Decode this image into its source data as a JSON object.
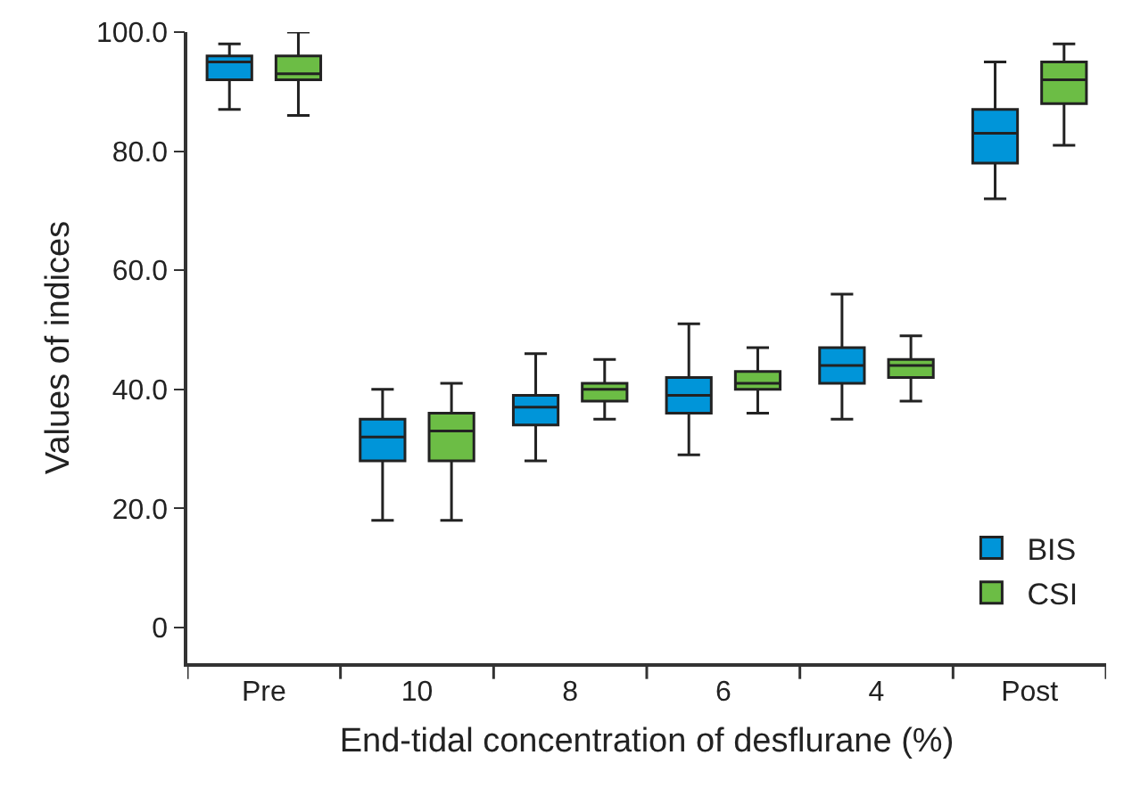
{
  "chart_data": {
    "type": "box",
    "xlabel": "End-tidal concentration of desflurane (%)",
    "ylabel": "Values of indices",
    "categories": [
      "Pre",
      "10",
      "8",
      "6",
      "4",
      "Post"
    ],
    "ylim": [
      -6,
      100
    ],
    "yticks": [
      {
        "value": 0,
        "label": "0"
      },
      {
        "value": 20,
        "label": "20.0"
      },
      {
        "value": 40,
        "label": "40.0"
      },
      {
        "value": 60,
        "label": "60.0"
      },
      {
        "value": 80,
        "label": "80.0"
      },
      {
        "value": 100,
        "label": "100.0"
      }
    ],
    "legend": "bottom right",
    "series": [
      {
        "name": "BIS",
        "color": "#0095d9",
        "boxes": [
          {
            "low": 87,
            "q1": 92,
            "median": 95,
            "q3": 96,
            "high": 98
          },
          {
            "low": 18,
            "q1": 28,
            "median": 32,
            "q3": 35,
            "high": 40
          },
          {
            "low": 28,
            "q1": 34,
            "median": 37,
            "q3": 39,
            "high": 46
          },
          {
            "low": 29,
            "q1": 36,
            "median": 39,
            "q3": 42,
            "high": 51
          },
          {
            "low": 35,
            "q1": 41,
            "median": 44,
            "q3": 47,
            "high": 56
          },
          {
            "low": 72,
            "q1": 78,
            "median": 83,
            "q3": 87,
            "high": 95
          }
        ]
      },
      {
        "name": "CSI",
        "color": "#6cbd45",
        "boxes": [
          {
            "low": 86,
            "q1": 92,
            "median": 93,
            "q3": 96,
            "high": 100
          },
          {
            "low": 18,
            "q1": 28,
            "median": 33,
            "q3": 36,
            "high": 41
          },
          {
            "low": 35,
            "q1": 38,
            "median": 40,
            "q3": 41,
            "high": 45
          },
          {
            "low": 36,
            "q1": 40,
            "median": 41,
            "q3": 43,
            "high": 47
          },
          {
            "low": 38,
            "q1": 42,
            "median": 44,
            "q3": 45,
            "high": 49
          },
          {
            "low": 81,
            "q1": 88,
            "median": 92,
            "q3": 95,
            "high": 98
          }
        ]
      }
    ]
  }
}
